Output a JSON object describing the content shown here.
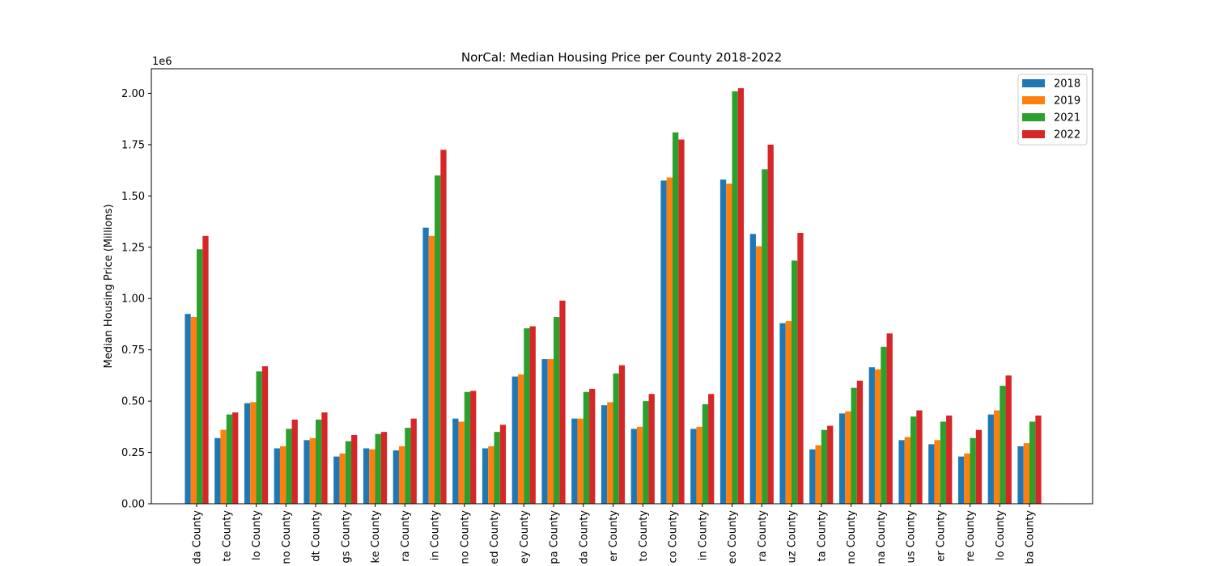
{
  "chart_data": {
    "type": "bar",
    "title": "NorCal: Median Housing Price per County 2018-2022",
    "xlabel": "",
    "ylabel": "Median Housing Price (Millions)",
    "y_offset_label": "1e6",
    "ylim": [
      0,
      2.12
    ],
    "yticks": [
      "0.00",
      "0.25",
      "0.50",
      "0.75",
      "1.00",
      "1.25",
      "1.50",
      "1.75",
      "2.00"
    ],
    "grid": false,
    "legend_position": "top-right",
    "categories": [
      "da County",
      "te County",
      "lo County",
      "no County",
      "dt County",
      "gs County",
      "ke County",
      "ra County",
      "in County",
      "no County",
      "ed County",
      "ey County",
      "pa County",
      "da County",
      "er County",
      "to County",
      "co County",
      "in County",
      "eo County",
      "ra County",
      "uz County",
      "ta County",
      "no County",
      "na County",
      "us County",
      "er County",
      "re County",
      "lo County",
      "ba County"
    ],
    "series": [
      {
        "name": "2018",
        "color": "#1f77b4",
        "values": [
          0.925,
          0.32,
          0.49,
          0.27,
          0.31,
          0.23,
          0.27,
          0.26,
          1.345,
          0.415,
          0.27,
          0.62,
          0.705,
          0.415,
          0.48,
          0.365,
          1.575,
          0.365,
          1.58,
          1.315,
          0.88,
          0.265,
          0.44,
          0.665,
          0.31,
          0.29,
          0.23,
          0.435,
          0.28
        ]
      },
      {
        "name": "2019",
        "color": "#ff7f0e",
        "values": [
          0.91,
          0.36,
          0.495,
          0.28,
          0.32,
          0.245,
          0.265,
          0.28,
          1.305,
          0.4,
          0.28,
          0.63,
          0.705,
          0.415,
          0.495,
          0.375,
          1.59,
          0.375,
          1.56,
          1.255,
          0.89,
          0.285,
          0.45,
          0.655,
          0.325,
          0.31,
          0.245,
          0.455,
          0.295
        ]
      },
      {
        "name": "2021",
        "color": "#2ca02c",
        "values": [
          1.24,
          0.435,
          0.645,
          0.365,
          0.41,
          0.305,
          0.34,
          0.37,
          1.6,
          0.545,
          0.35,
          0.855,
          0.91,
          0.545,
          0.635,
          0.5,
          1.81,
          0.485,
          2.01,
          1.63,
          1.185,
          0.36,
          0.565,
          0.765,
          0.425,
          0.4,
          0.32,
          0.575,
          0.4
        ]
      },
      {
        "name": "2022",
        "color": "#d62728",
        "values": [
          1.305,
          0.445,
          0.67,
          0.41,
          0.445,
          0.335,
          0.35,
          0.415,
          1.725,
          0.55,
          0.385,
          0.865,
          0.99,
          0.56,
          0.675,
          0.535,
          1.775,
          0.535,
          2.025,
          1.75,
          1.32,
          0.38,
          0.6,
          0.83,
          0.455,
          0.43,
          0.36,
          0.625,
          0.43
        ]
      }
    ]
  }
}
